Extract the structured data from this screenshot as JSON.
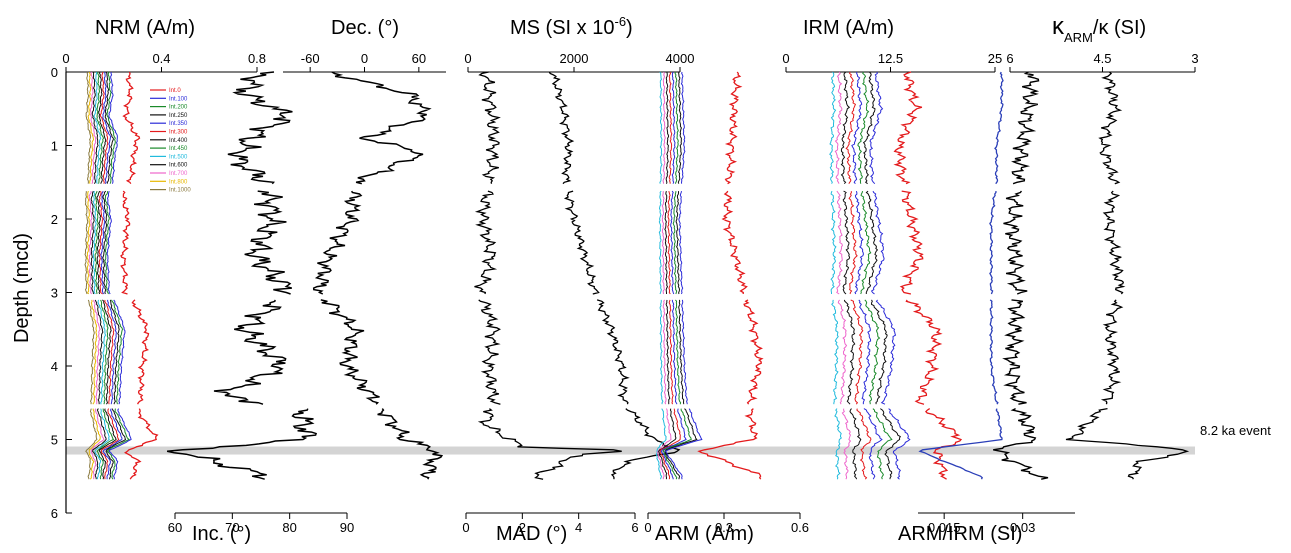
{
  "chart_data": {
    "type": "line",
    "depth_axis": {
      "label": "Depth (mcd)",
      "ticks": [
        "0",
        "1",
        "2",
        "3",
        "4",
        "5",
        "6"
      ],
      "range": [
        0,
        6
      ],
      "direction": "down"
    },
    "top_axes": [
      {
        "id": "nrm",
        "label": "NRM (A/m)",
        "ticks": [
          "0",
          "0.4",
          "0.8"
        ],
        "range": [
          0,
          0.8
        ]
      },
      {
        "id": "dec",
        "label": "Dec. (°)",
        "ticks": [
          "-60",
          "0",
          "60"
        ],
        "range": [
          -90,
          90
        ]
      },
      {
        "id": "ms",
        "label_main": "MS (SI x 10",
        "label_sup": "-6",
        "label_end": ")",
        "ticks": [
          "0",
          "2000",
          "4000"
        ],
        "range": [
          0,
          4000
        ]
      },
      {
        "id": "irm",
        "label": "IRM (A/m)",
        "ticks": [
          "0",
          "12.5",
          "25"
        ],
        "range": [
          0,
          25
        ]
      },
      {
        "id": "karm",
        "label_k1": "κ",
        "label_sub": "ARM",
        "label_rest": "/κ (SI)",
        "ticks": [
          "6",
          "4.5",
          "3"
        ],
        "range": [
          6,
          3
        ]
      }
    ],
    "bottom_axes": [
      {
        "id": "inc",
        "label": "Inc. (°)",
        "ticks": [
          "60",
          "70",
          "80",
          "90"
        ],
        "range": [
          60,
          90
        ]
      },
      {
        "id": "mad",
        "label": "MAD (°)",
        "ticks": [
          "0",
          "2",
          "4",
          "6"
        ],
        "range": [
          0,
          6
        ]
      },
      {
        "id": "arm",
        "label": "ARM (A/m)",
        "ticks": [
          "0",
          "0.3",
          "0.6"
        ],
        "range": [
          0,
          0.6
        ]
      },
      {
        "id": "armirm",
        "label": "ARM/IRM (SI)",
        "ticks": [
          "0.015",
          "0.03"
        ],
        "range": [
          0.01,
          0.04
        ]
      }
    ],
    "legend": {
      "placement": "inside NRM panel, top",
      "items": [
        {
          "name": "Int.0",
          "color": "#e41a1c"
        },
        {
          "name": "Int.100",
          "color": "#2b2bd8"
        },
        {
          "name": "Int.200",
          "color": "#1a8a2a"
        },
        {
          "name": "Int.250",
          "color": "#111111"
        },
        {
          "name": "Int.350",
          "color": "#2b2bd8"
        },
        {
          "name": "Int.300",
          "color": "#e41a1c"
        },
        {
          "name": "Int.400",
          "color": "#111111"
        },
        {
          "name": "Int.450",
          "color": "#1a8a2a"
        },
        {
          "name": "Int.500",
          "color": "#22bbdd"
        },
        {
          "name": "Int.600",
          "color": "#111111"
        },
        {
          "name": "Int.700",
          "color": "#ee66cc"
        },
        {
          "name": "Int.800",
          "color": "#e8b800"
        },
        {
          "name": "Int.1000",
          "color": "#8a7a40"
        }
      ]
    },
    "event": {
      "label": "8.2 ka event",
      "depth": 5.15
    },
    "sections": [
      [
        0,
        1.52
      ],
      [
        1.62,
        3.02
      ],
      [
        3.1,
        4.52
      ],
      [
        4.58,
        5.55
      ]
    ],
    "series_profiles": {
      "nrm_int0": [
        [
          0.0,
          0.26
        ],
        [
          0.3,
          0.27
        ],
        [
          0.6,
          0.25
        ],
        [
          0.9,
          0.3
        ],
        [
          1.2,
          0.28
        ],
        [
          1.5,
          0.27
        ],
        [
          1.7,
          0.24
        ],
        [
          2.0,
          0.26
        ],
        [
          2.5,
          0.24
        ],
        [
          3.0,
          0.25
        ],
        [
          3.1,
          0.28
        ],
        [
          3.5,
          0.34
        ],
        [
          4.0,
          0.32
        ],
        [
          4.5,
          0.31
        ],
        [
          4.6,
          0.3
        ],
        [
          5.0,
          0.38
        ],
        [
          5.15,
          0.25
        ],
        [
          5.3,
          0.3
        ],
        [
          5.5,
          0.28
        ]
      ],
      "dec": [
        [
          0.0,
          -40
        ],
        [
          0.3,
          50
        ],
        [
          0.6,
          70
        ],
        [
          0.9,
          0
        ],
        [
          1.1,
          65
        ],
        [
          1.5,
          -10
        ],
        [
          2.0,
          -15
        ],
        [
          2.5,
          -40
        ],
        [
          3.0,
          -50
        ],
        [
          3.5,
          -10
        ],
        [
          4.0,
          -20
        ],
        [
          4.5,
          15
        ],
        [
          5.0,
          45
        ],
        [
          5.15,
          80
        ],
        [
          5.5,
          70
        ]
      ],
      "inc": [
        [
          0.0,
          75
        ],
        [
          0.3,
          72
        ],
        [
          0.6,
          80
        ],
        [
          0.9,
          73
        ],
        [
          1.2,
          71
        ],
        [
          1.5,
          76
        ],
        [
          2.0,
          77
        ],
        [
          2.5,
          74
        ],
        [
          3.0,
          80
        ],
        [
          3.5,
          72
        ],
        [
          4.0,
          79
        ],
        [
          4.4,
          68
        ],
        [
          4.6,
          82
        ],
        [
          5.0,
          83
        ],
        [
          5.15,
          60
        ],
        [
          5.5,
          76
        ]
      ],
      "mad": [
        [
          0.0,
          0.7
        ],
        [
          0.5,
          0.9
        ],
        [
          1.0,
          1.0
        ],
        [
          1.5,
          0.8
        ],
        [
          2.0,
          0.6
        ],
        [
          2.5,
          0.9
        ],
        [
          3.0,
          0.5
        ],
        [
          3.5,
          1.0
        ],
        [
          4.0,
          0.8
        ],
        [
          4.5,
          1.0
        ],
        [
          4.8,
          0.7
        ],
        [
          5.1,
          2.0
        ],
        [
          5.15,
          6.0
        ],
        [
          5.2,
          4.0
        ],
        [
          5.5,
          2.5
        ]
      ],
      "ms": [
        [
          0.0,
          1600
        ],
        [
          0.5,
          1800
        ],
        [
          1.0,
          1900
        ],
        [
          1.5,
          1850
        ],
        [
          2.0,
          2000
        ],
        [
          2.5,
          2200
        ],
        [
          3.0,
          2400
        ],
        [
          3.5,
          2700
        ],
        [
          4.0,
          2900
        ],
        [
          4.5,
          2950
        ],
        [
          5.0,
          3500
        ],
        [
          5.15,
          4000
        ],
        [
          5.3,
          3000
        ],
        [
          5.5,
          2700
        ]
      ],
      "arm_outer": [
        [
          0.0,
          0.12
        ],
        [
          1.0,
          0.13
        ],
        [
          2.0,
          0.11
        ],
        [
          3.0,
          0.12
        ],
        [
          4.0,
          0.13
        ],
        [
          4.5,
          0.14
        ],
        [
          5.0,
          0.2
        ],
        [
          5.15,
          0.05
        ],
        [
          5.5,
          0.12
        ]
      ],
      "irm_outer": [
        [
          0.0,
          14.5
        ],
        [
          0.5,
          15.5
        ],
        [
          1.0,
          13.5
        ],
        [
          1.5,
          14
        ],
        [
          2.0,
          15
        ],
        [
          2.5,
          16
        ],
        [
          3.0,
          14
        ],
        [
          3.5,
          18
        ],
        [
          4.0,
          17.5
        ],
        [
          4.5,
          16
        ],
        [
          5.0,
          21
        ],
        [
          5.15,
          18
        ],
        [
          5.5,
          19
        ]
      ],
      "armirm": [
        [
          0.0,
          0.026
        ],
        [
          0.5,
          0.026
        ],
        [
          1.0,
          0.025
        ],
        [
          1.5,
          0.025
        ],
        [
          2.0,
          0.024
        ],
        [
          2.5,
          0.024
        ],
        [
          3.0,
          0.024
        ],
        [
          3.5,
          0.024
        ],
        [
          4.0,
          0.024
        ],
        [
          4.5,
          0.025
        ],
        [
          5.0,
          0.026
        ],
        [
          5.15,
          0.01
        ],
        [
          5.5,
          0.022
        ]
      ],
      "karm": [
        [
          0.0,
          4.4
        ],
        [
          0.5,
          4.3
        ],
        [
          1.0,
          4.5
        ],
        [
          1.5,
          4.3
        ],
        [
          2.0,
          4.4
        ],
        [
          2.5,
          4.3
        ],
        [
          3.0,
          4.2
        ],
        [
          3.5,
          4.4
        ],
        [
          4.0,
          4.3
        ],
        [
          4.5,
          4.4
        ],
        [
          5.0,
          5.0
        ],
        [
          5.15,
          3.0
        ],
        [
          5.3,
          3.9
        ],
        [
          5.5,
          4.0
        ]
      ]
    }
  }
}
